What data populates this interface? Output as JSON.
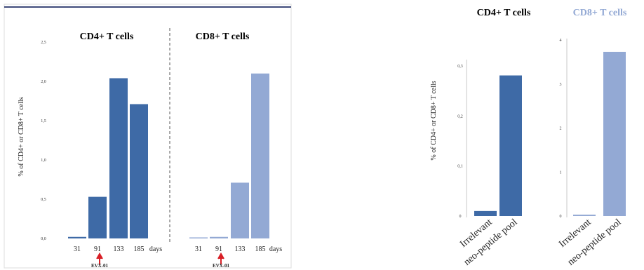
{
  "chart_data": [
    {
      "type": "bar",
      "ylabel": "% of CD4+ or CD8+ T cells",
      "yticks": [
        "0,0",
        "0,5",
        "1,0",
        "1,5",
        "2,0",
        "2,5"
      ],
      "ylim": [
        0,
        2.5
      ],
      "unit": "days",
      "grid": false,
      "annotation": "EVX-01",
      "panels": [
        {
          "title": "CD4+ T cells",
          "color": "#3e6aa6",
          "categories": [
            "31",
            "91",
            "133",
            "185"
          ],
          "values": [
            0.02,
            0.53,
            2.04,
            1.71
          ]
        },
        {
          "title": "CD8+ T cells",
          "color": "#93a9d4",
          "categories": [
            "31",
            "91",
            "133",
            "185"
          ],
          "values": [
            0.0,
            0.02,
            0.71,
            2.1
          ]
        }
      ]
    },
    {
      "type": "bar",
      "title": "CD4+ T cells",
      "ylabel": "% of CD4+ or CD8+ T cells",
      "categories": [
        "Irrelevant",
        "neo-peptide pool"
      ],
      "values": [
        0.01,
        0.281
      ],
      "yticks": [
        "0",
        "0,1",
        "0,2",
        "0,3"
      ],
      "ylim": [
        0,
        0.3
      ],
      "color": "#3e6aa6",
      "grid": false
    },
    {
      "type": "bar",
      "title": "CD8+ T cells",
      "categories": [
        "Irrelevant",
        "neo-peptide pool"
      ],
      "values": [
        0.03,
        3.73
      ],
      "yticks": [
        "0",
        "1",
        "2",
        "3",
        "4"
      ],
      "ylim": [
        0,
        4
      ],
      "color": "#93a9d4",
      "grid": false
    }
  ]
}
